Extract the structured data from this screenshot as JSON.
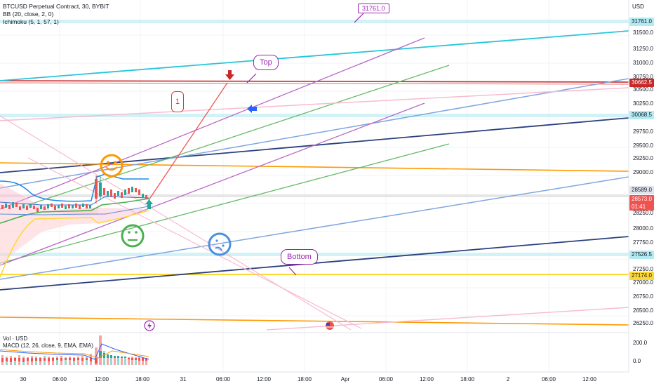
{
  "legend": {
    "symbol": "BTCUSD Perpetual Contract, 30, BYBIT",
    "bb": "BB (20, close, 2, 0)",
    "ichimoku": "Ichimoku (5, 1, 57, 1)"
  },
  "sub_legend": {
    "vol": "Vol · USD",
    "macd": "MACD (12, 26, close, 9, EMA, EMA)"
  },
  "currency": "USD",
  "price_axis": [
    "31500.0",
    "31250.0",
    "31000.0",
    "30750.0",
    "30500.0",
    "30250.0",
    "29750.0",
    "29500.0",
    "29250.0",
    "29000.0",
    "28250.0",
    "28000.0",
    "27750.0",
    "27250.0",
    "27000.0",
    "26750.0",
    "26500.0",
    "26250.0"
  ],
  "sub_axis": [
    "200.0",
    "0.0"
  ],
  "price_labels": [
    {
      "text": "31761.0",
      "kind": "cyan"
    },
    {
      "text": "30662.5",
      "kind": "red"
    },
    {
      "text": "30068.5",
      "kind": "cyan"
    },
    {
      "text": "28589.0",
      "kind": "gray"
    },
    {
      "text": "28573.0",
      "kind": "current",
      "sub": "01:41"
    },
    {
      "text": "27526.5",
      "kind": "cyan"
    },
    {
      "text": "27174.0",
      "kind": "yellow"
    }
  ],
  "time_axis": [
    "30",
    "06:00",
    "12:00",
    "18:00",
    "31",
    "06:00",
    "12:00",
    "18:00",
    "Apr",
    "06:00",
    "12:00",
    "18:00",
    "2",
    "06:00",
    "12:00"
  ],
  "annotations": {
    "top_box": "31761.0",
    "top": "Top",
    "bottom": "Bottom",
    "note1": "1"
  },
  "colors": {
    "accent_red": "#e53935",
    "purple": "#9c27b0",
    "cyan": "#26c6da",
    "orange": "#ff9800",
    "green": "#4caf50",
    "blue": "#5c8fd6",
    "navy": "#2b3f7d",
    "yellow": "#fdd835"
  }
}
